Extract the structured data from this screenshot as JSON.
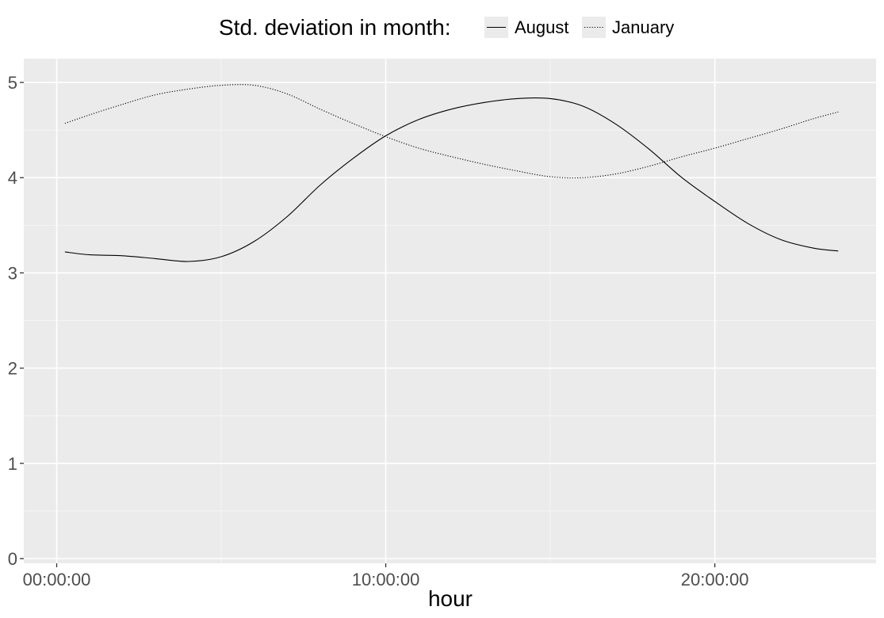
{
  "chart_data": {
    "type": "line",
    "title": "",
    "xlabel": "hour",
    "ylabel": "",
    "x_unit": "hours",
    "xlim": [
      -1.0,
      24.9
    ],
    "ylim": [
      -0.05,
      5.25
    ],
    "x_ticks": [
      {
        "value": 0,
        "label": "00:00:00"
      },
      {
        "value": 10,
        "label": "10:00:00"
      },
      {
        "value": 20,
        "label": "20:00:00"
      }
    ],
    "y_ticks": [
      {
        "value": 0,
        "label": "0"
      },
      {
        "value": 1,
        "label": "1"
      },
      {
        "value": 2,
        "label": "2"
      },
      {
        "value": 3,
        "label": "3"
      },
      {
        "value": 4,
        "label": "4"
      },
      {
        "value": 5,
        "label": "5"
      }
    ],
    "grid": true,
    "legend": {
      "title": "Std. deviation in month:",
      "position": "top",
      "entries": [
        {
          "name": "August",
          "linetype": "solid"
        },
        {
          "name": "January",
          "linetype": "dotted"
        }
      ]
    },
    "colors": {
      "panel_background": "#ebebeb",
      "grid_major": "#ffffff",
      "grid_minor": "#f5f5f5",
      "line": "#000000",
      "tick_text": "#4d4d4d"
    },
    "series": [
      {
        "name": "August",
        "linetype": "solid",
        "x": [
          0.25,
          1,
          2,
          3,
          4,
          5,
          6,
          7,
          8,
          9,
          10,
          11,
          12,
          13,
          14,
          15,
          16,
          17,
          18,
          19,
          20,
          21,
          22,
          23,
          23.75
        ],
        "y": [
          3.22,
          3.19,
          3.18,
          3.15,
          3.12,
          3.17,
          3.33,
          3.59,
          3.92,
          4.2,
          4.44,
          4.61,
          4.72,
          4.79,
          4.83,
          4.83,
          4.75,
          4.56,
          4.3,
          4.0,
          3.75,
          3.52,
          3.35,
          3.26,
          3.23
        ]
      },
      {
        "name": "January",
        "linetype": "dotted",
        "x": [
          0.25,
          1,
          2,
          3,
          4,
          5,
          6,
          7,
          8,
          9,
          10,
          11,
          12,
          13,
          14,
          15,
          16,
          17,
          18,
          19,
          20,
          21,
          22,
          23,
          23.75
        ],
        "y": [
          4.57,
          4.66,
          4.77,
          4.87,
          4.93,
          4.97,
          4.97,
          4.88,
          4.72,
          4.57,
          4.43,
          4.31,
          4.22,
          4.14,
          4.07,
          4.01,
          4.0,
          4.04,
          4.12,
          4.22,
          4.31,
          4.41,
          4.51,
          4.62,
          4.69
        ]
      }
    ]
  }
}
